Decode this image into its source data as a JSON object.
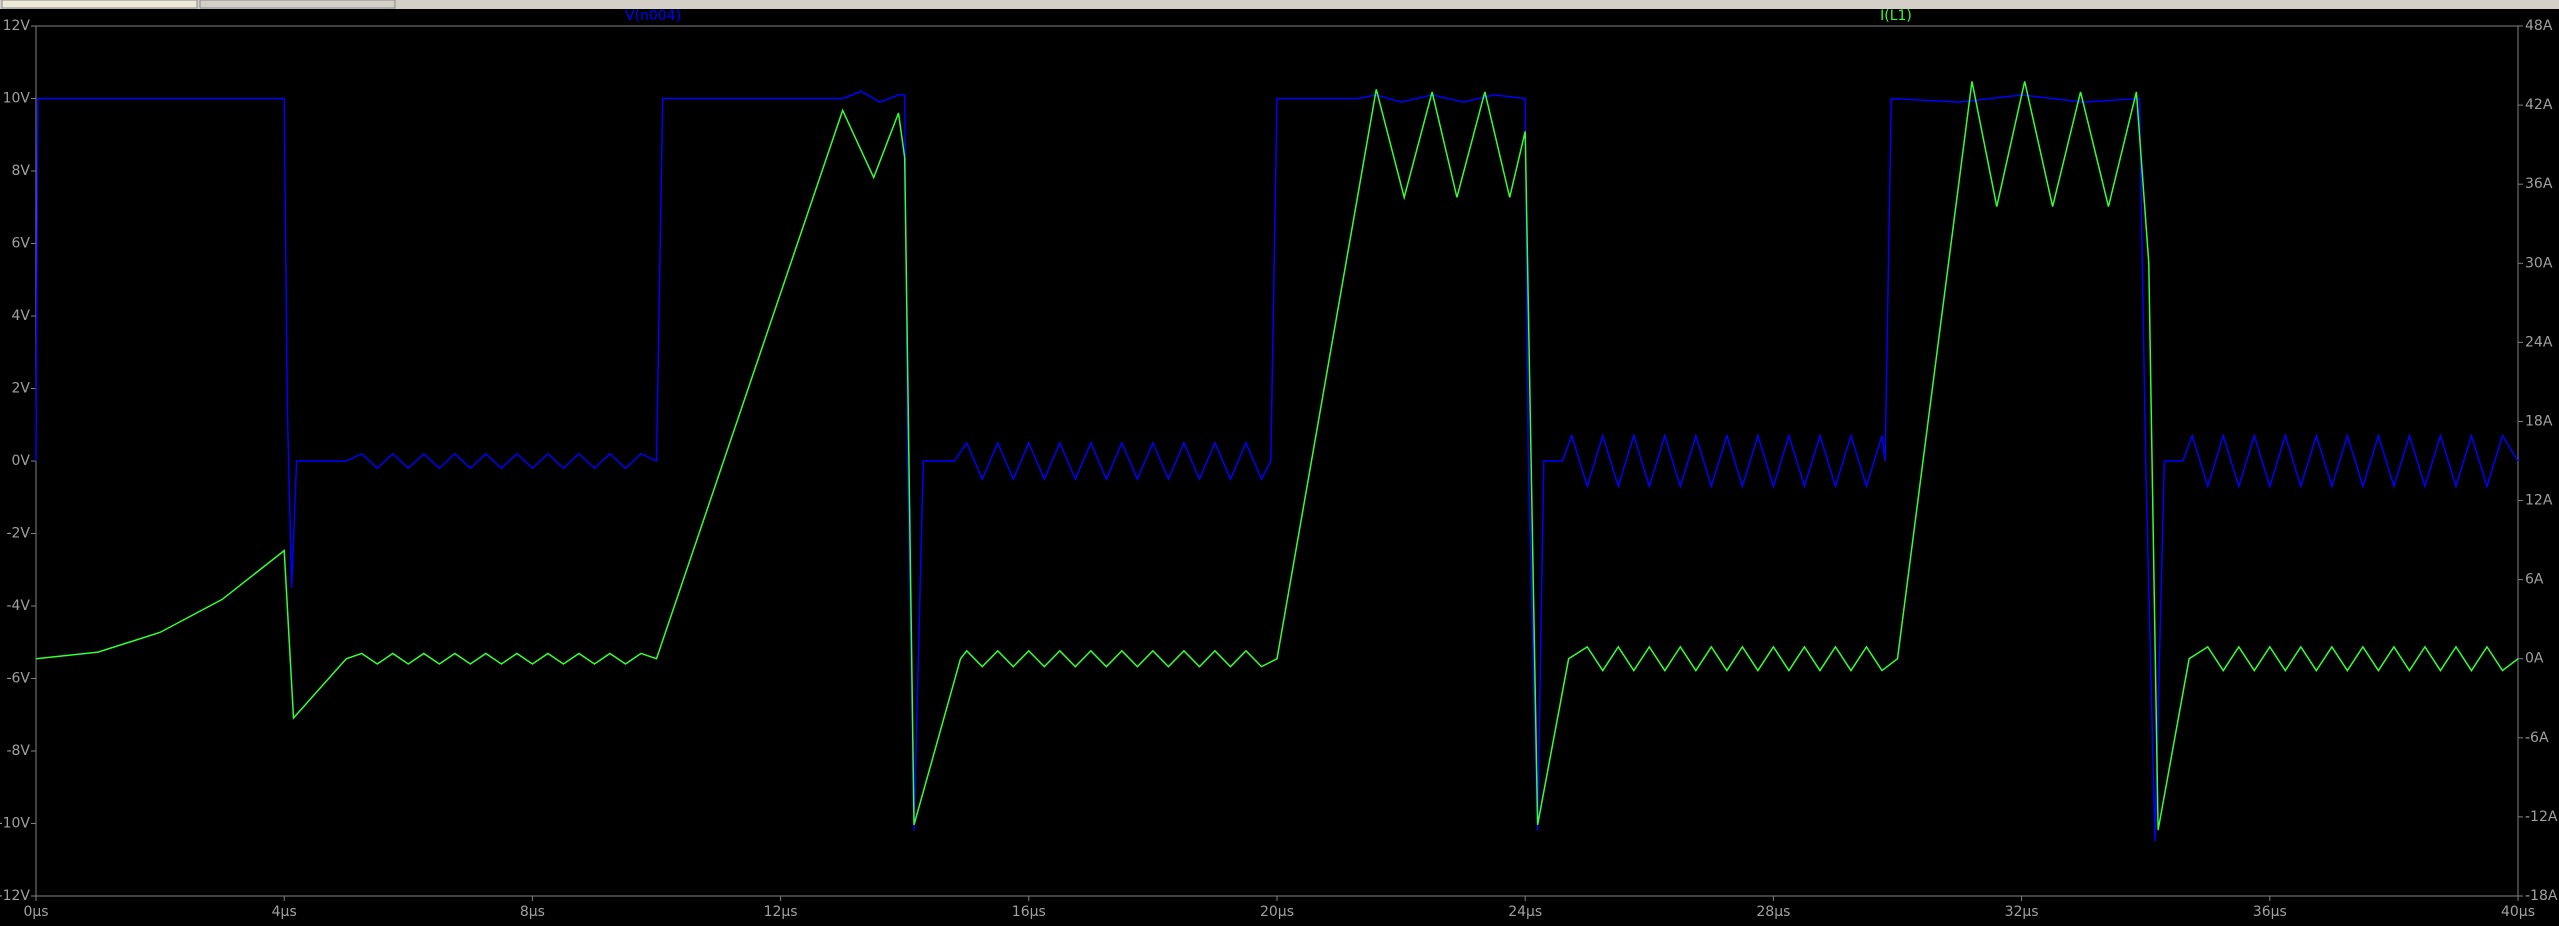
{
  "chart_data": {
    "type": "line",
    "xticks": [
      {
        "value": 0,
        "label": "0µs"
      },
      {
        "value": 4,
        "label": "4µs"
      },
      {
        "value": 8,
        "label": "8µs"
      },
      {
        "value": 12,
        "label": "12µs"
      },
      {
        "value": 16,
        "label": "16µs"
      },
      {
        "value": 20,
        "label": "20µs"
      },
      {
        "value": 24,
        "label": "24µs"
      },
      {
        "value": 28,
        "label": "28µs"
      },
      {
        "value": 32,
        "label": "32µs"
      },
      {
        "value": 36,
        "label": "36µs"
      },
      {
        "value": 40,
        "label": "40µs"
      }
    ],
    "xlim": [
      0,
      40
    ],
    "ylim": [
      -12,
      12
    ],
    "yticks": [
      {
        "value": -12,
        "label": "-12V"
      },
      {
        "value": -10,
        "label": "-10V"
      },
      {
        "value": -8,
        "label": "-8V"
      },
      {
        "value": -6,
        "label": "-6V"
      },
      {
        "value": -4,
        "label": "-4V"
      },
      {
        "value": -2,
        "label": "-2V"
      },
      {
        "value": 0,
        "label": "0V"
      },
      {
        "value": 2,
        "label": "2V"
      },
      {
        "value": 4,
        "label": "4V"
      },
      {
        "value": 6,
        "label": "6V"
      },
      {
        "value": 8,
        "label": "8V"
      },
      {
        "value": 10,
        "label": "10V"
      },
      {
        "value": 12,
        "label": "12V"
      }
    ],
    "y2lim": [
      -18,
      48
    ],
    "y2ticks": [
      {
        "value": -18,
        "label": "-18A"
      },
      {
        "value": -12,
        "label": "-12A"
      },
      {
        "value": -6,
        "label": "-6A"
      },
      {
        "value": 0,
        "label": "0A"
      },
      {
        "value": 6,
        "label": "6A"
      },
      {
        "value": 12,
        "label": "12A"
      },
      {
        "value": 18,
        "label": "18A"
      },
      {
        "value": 24,
        "label": "24A"
      },
      {
        "value": 30,
        "label": "30A"
      },
      {
        "value": 36,
        "label": "36A"
      },
      {
        "value": 42,
        "label": "42A"
      },
      {
        "value": 48,
        "label": "48A"
      }
    ],
    "grid": false,
    "series": [
      {
        "name": "V(n004)",
        "color": "#0000ff",
        "axis": "y",
        "x": [
          0,
          0.03,
          4,
          4.05,
          4.12,
          4.2,
          5,
          5.25,
          5.5,
          5.75,
          6,
          6.25,
          6.5,
          6.75,
          7,
          7.25,
          7.5,
          7.75,
          8,
          8.25,
          8.5,
          8.75,
          9,
          9.25,
          9.5,
          9.75,
          10,
          10.1,
          13,
          13.3,
          13.6,
          13.9,
          14,
          14.05,
          14.15,
          14.3,
          14.8,
          15,
          15.25,
          15.5,
          15.75,
          16,
          16.25,
          16.5,
          16.75,
          17,
          17.25,
          17.5,
          17.75,
          18,
          18.25,
          18.5,
          18.75,
          19,
          19.25,
          19.5,
          19.75,
          19.9,
          20,
          21.3,
          21.6,
          22,
          22.5,
          23,
          23.5,
          24,
          24.05,
          24.2,
          24.3,
          24.6,
          24.75,
          25,
          25.25,
          25.5,
          25.75,
          26,
          26.25,
          26.5,
          26.75,
          27,
          27.25,
          27.5,
          27.75,
          28,
          28.25,
          28.5,
          28.75,
          29,
          29.25,
          29.5,
          29.75,
          29.8,
          29.9,
          31,
          32,
          33,
          33.9,
          34,
          34.15,
          34.3,
          34.6,
          34.75,
          35,
          35.25,
          35.5,
          35.75,
          36,
          36.25,
          36.5,
          36.75,
          37,
          37.25,
          37.5,
          37.75,
          38,
          38.25,
          38.5,
          38.75,
          39,
          39.25,
          39.5,
          39.75,
          40
        ],
        "values": [
          0,
          10,
          10,
          1.5,
          -3.5,
          0,
          0,
          0.2,
          -0.2,
          0.2,
          -0.2,
          0.2,
          -0.2,
          0.2,
          -0.2,
          0.2,
          -0.2,
          0.2,
          -0.2,
          0.2,
          -0.2,
          0.2,
          -0.2,
          0.2,
          -0.2,
          0.2,
          0,
          10,
          10,
          10.2,
          9.9,
          10.1,
          10.1,
          0,
          -10.2,
          0,
          0,
          0.5,
          -0.5,
          0.5,
          -0.5,
          0.5,
          -0.5,
          0.5,
          -0.5,
          0.5,
          -0.5,
          0.5,
          -0.5,
          0.5,
          -0.5,
          0.5,
          -0.5,
          0.5,
          -0.5,
          0.5,
          -0.5,
          0,
          10,
          10,
          10.1,
          9.9,
          10.1,
          9.9,
          10.1,
          10,
          0,
          -10.2,
          0,
          0,
          0.7,
          -0.7,
          0.7,
          -0.7,
          0.7,
          -0.7,
          0.7,
          -0.7,
          0.7,
          -0.7,
          0.7,
          -0.7,
          0.7,
          -0.7,
          0.7,
          -0.7,
          0.7,
          -0.7,
          0.7,
          -0.7,
          0.7,
          0,
          10,
          9.9,
          10.1,
          9.9,
          10,
          0,
          -10.5,
          0,
          0,
          0.7,
          -0.7,
          0.7,
          -0.7,
          0.7,
          -0.7,
          0.7,
          -0.7,
          0.7,
          -0.7,
          0.7,
          -0.7,
          0.7,
          -0.7,
          0.7,
          -0.7,
          0.7,
          -0.7,
          0.7,
          -0.7,
          0.7,
          0
        ]
      },
      {
        "name": "I(L1)",
        "color": "#33ff33",
        "axis": "y2",
        "x": [
          0,
          1,
          2,
          3,
          4,
          4.15,
          5,
          5.25,
          5.5,
          5.75,
          6,
          6.25,
          6.5,
          6.75,
          7,
          7.25,
          7.5,
          7.75,
          8,
          8.25,
          8.5,
          8.75,
          9,
          9.25,
          9.5,
          9.75,
          10,
          13,
          13.5,
          13.9,
          14,
          14.15,
          14.9,
          15,
          15.25,
          15.5,
          15.75,
          16,
          16.25,
          16.5,
          16.75,
          17,
          17.25,
          17.5,
          17.75,
          18,
          18.25,
          18.5,
          18.75,
          19,
          19.25,
          19.5,
          19.75,
          20,
          21.6,
          22.05,
          22.5,
          22.9,
          23.35,
          23.75,
          24,
          24.2,
          24.7,
          25,
          25.25,
          25.5,
          25.75,
          26,
          26.25,
          26.5,
          26.75,
          27,
          27.25,
          27.5,
          27.75,
          28,
          28.25,
          28.5,
          28.75,
          29,
          29.25,
          29.5,
          29.75,
          30,
          31.2,
          31.6,
          32.05,
          32.5,
          32.95,
          33.4,
          33.85,
          34.05,
          34.2,
          34.7,
          35,
          35.25,
          35.5,
          35.75,
          36,
          36.25,
          36.5,
          36.75,
          37,
          37.25,
          37.5,
          37.75,
          38,
          38.25,
          38.5,
          38.75,
          39,
          39.25,
          39.5,
          39.75,
          40
        ],
        "values": [
          0,
          0.5,
          2,
          4.5,
          8.2,
          -4.5,
          0,
          0.4,
          -0.4,
          0.4,
          -0.4,
          0.4,
          -0.4,
          0.4,
          -0.4,
          0.4,
          -0.4,
          0.4,
          -0.4,
          0.4,
          -0.4,
          0.4,
          -0.4,
          0.4,
          -0.4,
          0.4,
          0,
          41.6,
          36.5,
          41.4,
          38,
          -12.6,
          0,
          0.6,
          -0.6,
          0.6,
          -0.6,
          0.6,
          -0.6,
          0.6,
          -0.6,
          0.6,
          -0.6,
          0.6,
          -0.6,
          0.6,
          -0.6,
          0.6,
          -0.6,
          0.6,
          -0.6,
          0.6,
          -0.6,
          0,
          43.2,
          35,
          43,
          35,
          43,
          35,
          40,
          -12.6,
          0,
          0.9,
          -0.9,
          0.9,
          -0.9,
          0.9,
          -0.9,
          0.9,
          -0.9,
          0.9,
          -0.9,
          0.9,
          -0.9,
          0.9,
          -0.9,
          0.9,
          -0.9,
          0.9,
          -0.9,
          0.9,
          -0.9,
          0,
          43.8,
          34.3,
          43.8,
          34.3,
          43,
          34.3,
          43,
          30,
          -13,
          0,
          0.9,
          -0.9,
          0.9,
          -0.9,
          0.9,
          -0.9,
          0.9,
          -0.9,
          0.9,
          -0.9,
          0.9,
          -0.9,
          0.9,
          -0.9,
          0.9,
          -0.9,
          0.9,
          -0.9,
          0.9,
          -0.9,
          0
        ]
      }
    ]
  }
}
